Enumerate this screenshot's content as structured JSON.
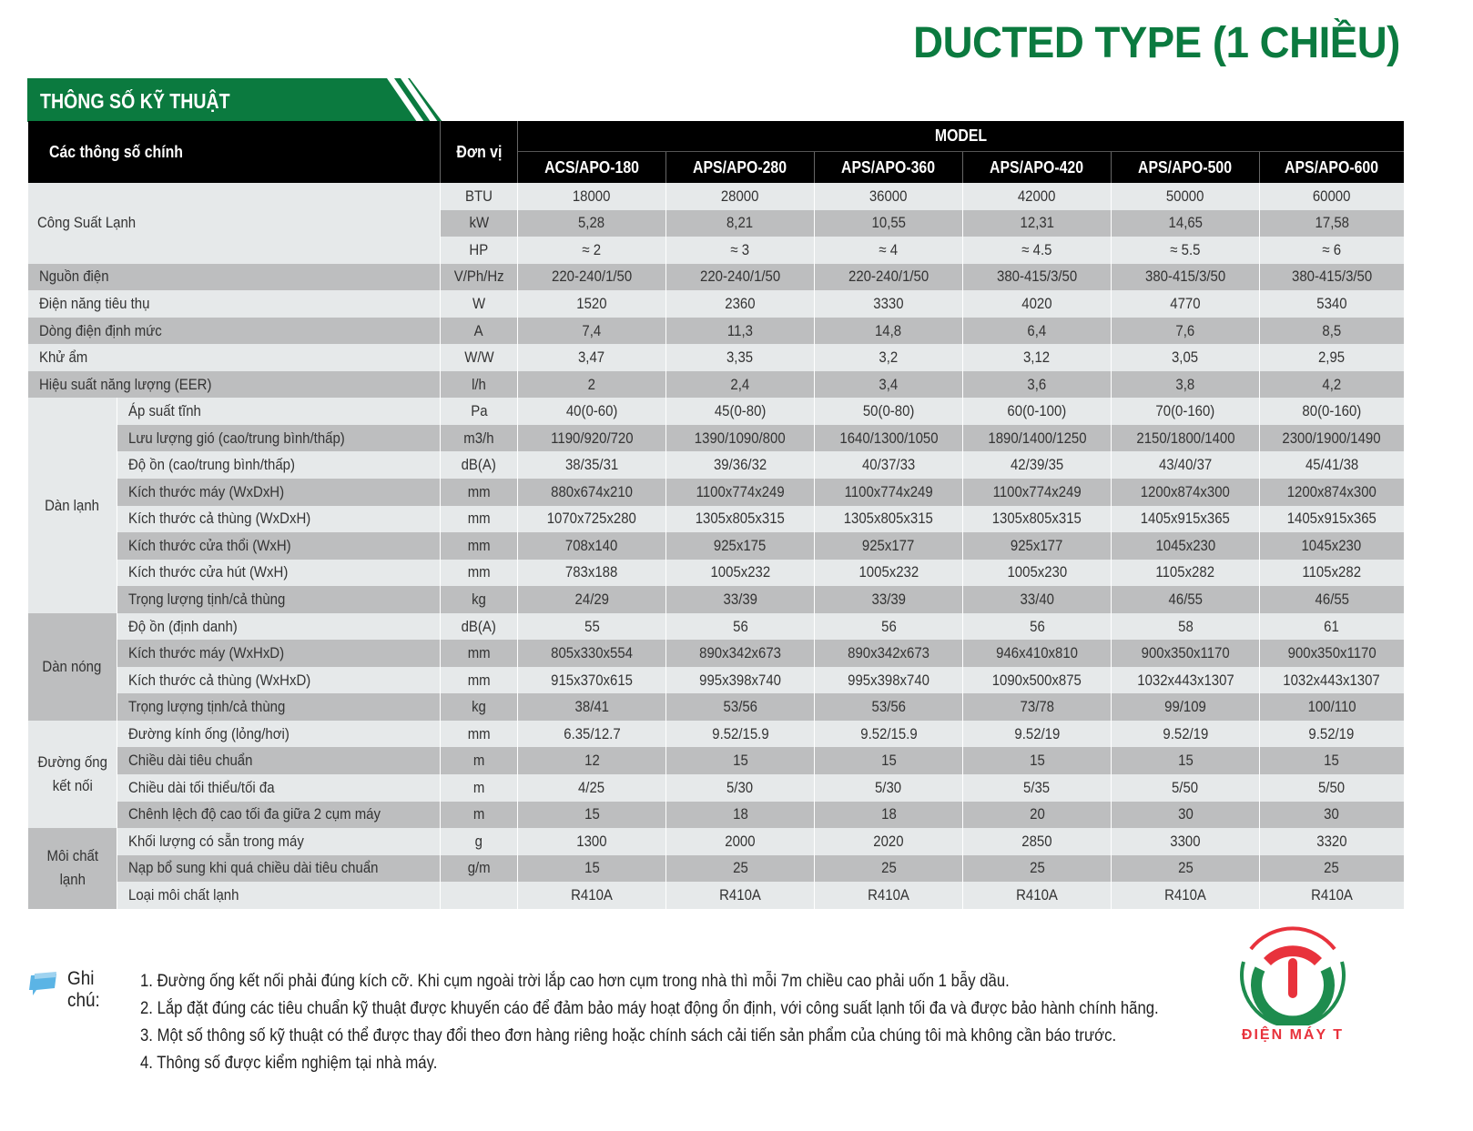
{
  "title": "DUCTED TYPE (1 CHIỀU)",
  "banner": "THÔNG SỐ KỸ THUẬT",
  "colors": {
    "brand_green": "#0b7a3f",
    "header_black": "#000000",
    "row_light": "#e6e9ea",
    "row_gray": "#bdbebf",
    "logo_red": "#e8323c"
  },
  "table": {
    "header_main": "Các thông số chính",
    "header_unit": "Đơn vị",
    "header_model": "MODEL",
    "models": [
      "ACS/APO-180",
      "APS/APO-280",
      "APS/APO-360",
      "APS/APO-420",
      "APS/APO-500",
      "APS/APO-600"
    ],
    "sections": [
      {
        "label": "Công Suất Lạnh",
        "merged": true,
        "rows": [
          {
            "param": "",
            "unit": "BTU",
            "values": [
              "18000",
              "28000",
              "36000",
              "42000",
              "50000",
              "60000"
            ]
          },
          {
            "param": "",
            "unit": "kW",
            "values": [
              "5,28",
              "8,21",
              "10,55",
              "12,31",
              "14,65",
              "17,58"
            ]
          },
          {
            "param": "",
            "unit": "HP",
            "values": [
              "≈ 2",
              "≈ 3",
              "≈ 4",
              "≈ 4.5",
              "≈ 5.5",
              "≈ 6"
            ]
          }
        ]
      },
      {
        "label": "",
        "rows": [
          {
            "param": "Nguồn điện",
            "unit": "V/Ph/Hz",
            "values": [
              "220-240/1/50",
              "220-240/1/50",
              "220-240/1/50",
              "380-415/3/50",
              "380-415/3/50",
              "380-415/3/50"
            ]
          },
          {
            "param": "Điện năng tiêu thụ",
            "unit": "W",
            "values": [
              "1520",
              "2360",
              "3330",
              "4020",
              "4770",
              "5340"
            ]
          },
          {
            "param": "Dòng điện định mức",
            "unit": "A",
            "values": [
              "7,4",
              "11,3",
              "14,8",
              "6,4",
              "7,6",
              "8,5"
            ]
          },
          {
            "param": "Khử ẩm",
            "unit": "W/W",
            "values": [
              "3,47",
              "3,35",
              "3,2",
              "3,12",
              "3,05",
              "2,95"
            ]
          },
          {
            "param": "Hiệu suất năng lượng (EER)",
            "unit": "l/h",
            "values": [
              "2",
              "2,4",
              "3,4",
              "3,6",
              "3,8",
              "4,2"
            ]
          }
        ]
      },
      {
        "label": "Dàn lạnh",
        "tone": "l",
        "rows": [
          {
            "param": "Áp suất tĩnh",
            "unit": "Pa",
            "values": [
              "40(0-60)",
              "45(0-80)",
              "50(0-80)",
              "60(0-100)",
              "70(0-160)",
              "80(0-160)"
            ]
          },
          {
            "param": "Lưu lượng gió (cao/trung bình/thấp)",
            "unit": "m3/h",
            "values": [
              "1190/920/720",
              "1390/1090/800",
              "1640/1300/1050",
              "1890/1400/1250",
              "2150/1800/1400",
              "2300/1900/1490"
            ]
          },
          {
            "param": "Độ ồn (cao/trung bình/thấp)",
            "unit": "dB(A)",
            "values": [
              "38/35/31",
              "39/36/32",
              "40/37/33",
              "42/39/35",
              "43/40/37",
              "45/41/38"
            ]
          },
          {
            "param": "Kích thước máy (WxDxH)",
            "unit": "mm",
            "values": [
              "880x674x210",
              "1100x774x249",
              "1100x774x249",
              "1100x774x249",
              "1200x874x300",
              "1200x874x300"
            ]
          },
          {
            "param": "Kích thước cả thùng (WxDxH)",
            "unit": "mm",
            "values": [
              "1070x725x280",
              "1305x805x315",
              "1305x805x315",
              "1305x805x315",
              "1405x915x365",
              "1405x915x365"
            ]
          },
          {
            "param": "Kích thước cửa thổi (WxH)",
            "unit": "mm",
            "values": [
              "708x140",
              "925x175",
              "925x177",
              "925x177",
              "1045x230",
              "1045x230"
            ]
          },
          {
            "param": "Kích thước cửa hút (WxH)",
            "unit": "mm",
            "values": [
              "783x188",
              "1005x232",
              "1005x232",
              "1005x230",
              "1105x282",
              "1105x282"
            ]
          },
          {
            "param": "Trọng lượng tịnh/cả thùng",
            "unit": "kg",
            "values": [
              "24/29",
              "33/39",
              "33/39",
              "33/40",
              "46/55",
              "46/55"
            ]
          }
        ]
      },
      {
        "label": "Dàn nóng",
        "tone": "g",
        "rows": [
          {
            "param": "Độ ồn (định danh)",
            "unit": "dB(A)",
            "values": [
              "55",
              "56",
              "56",
              "56",
              "58",
              "61"
            ]
          },
          {
            "param": "Kích thước máy (WxHxD)",
            "unit": "mm",
            "values": [
              "805x330x554",
              "890x342x673",
              "890x342x673",
              "946x410x810",
              "900x350x1170",
              "900x350x1170"
            ]
          },
          {
            "param": "Kích thước cả thùng (WxHxD)",
            "unit": "mm",
            "values": [
              "915x370x615",
              "995x398x740",
              "995x398x740",
              "1090x500x875",
              "1032x443x1307",
              "1032x443x1307"
            ]
          },
          {
            "param": "Trọng lượng tịnh/cả thùng",
            "unit": "kg",
            "values": [
              "38/41",
              "53/56",
              "53/56",
              "73/78",
              "99/109",
              "100/110"
            ]
          }
        ]
      },
      {
        "label": "Đường ống kết nối",
        "tone": "l",
        "rows": [
          {
            "param": "Đường kính ống (lỏng/hơi)",
            "unit": "mm",
            "values": [
              "6.35/12.7",
              "9.52/15.9",
              "9.52/15.9",
              "9.52/19",
              "9.52/19",
              "9.52/19"
            ]
          },
          {
            "param": "Chiều dài tiêu chuẩn",
            "unit": "m",
            "values": [
              "12",
              "15",
              "15",
              "15",
              "15",
              "15"
            ]
          },
          {
            "param": "Chiều dài tối thiểu/tối đa",
            "unit": "m",
            "values": [
              "4/25",
              "5/30",
              "5/30",
              "5/35",
              "5/50",
              "5/50"
            ]
          },
          {
            "param": "Chênh lệch độ cao tối đa giữa 2 cụm máy",
            "unit": "m",
            "values": [
              "15",
              "18",
              "18",
              "20",
              "30",
              "30"
            ]
          }
        ]
      },
      {
        "label": "Môi chất lạnh",
        "tone": "g",
        "rows": [
          {
            "param": "Khối lượng có sẵn trong máy",
            "unit": "g",
            "values": [
              "1300",
              "2000",
              "2020",
              "2850",
              "3300",
              "3320"
            ]
          },
          {
            "param": "Nạp bổ sung khi quá chiều dài tiêu chuẩn",
            "unit": "g/m",
            "values": [
              "15",
              "25",
              "25",
              "25",
              "25",
              "25"
            ]
          },
          {
            "param": "Loại môi chất lạnh",
            "unit": "",
            "values": [
              "R410A",
              "R410A",
              "R410A",
              "R410A",
              "R410A",
              "R410A"
            ]
          }
        ]
      }
    ]
  },
  "notes": {
    "label": "Ghi chú:",
    "icon": "note-icon",
    "items": [
      "1. Đường ống kết nối phải đúng kích cỡ. Khi cụm ngoài trời lắp cao hơn cụm trong nhà thì mỗi 7m chiều cao phải uốn 1 bẫy dầu.",
      "2. Lắp đặt đúng các tiêu chuẩn kỹ thuật được khuyến cáo để đảm bảo máy hoạt động ổn định, với công suất lạnh tối đa và được bảo hành chính hãng.",
      "3. Một số thông số kỹ thuật có thể được thay đổi theo đơn hàng riêng hoặc chính sách cải tiến sản phẩm của chúng tôi mà không cần báo trước.",
      "4. Thông số được kiểm nghiệm tại nhà máy."
    ]
  },
  "logo": {
    "text": "ĐIỆN MÁY T"
  }
}
